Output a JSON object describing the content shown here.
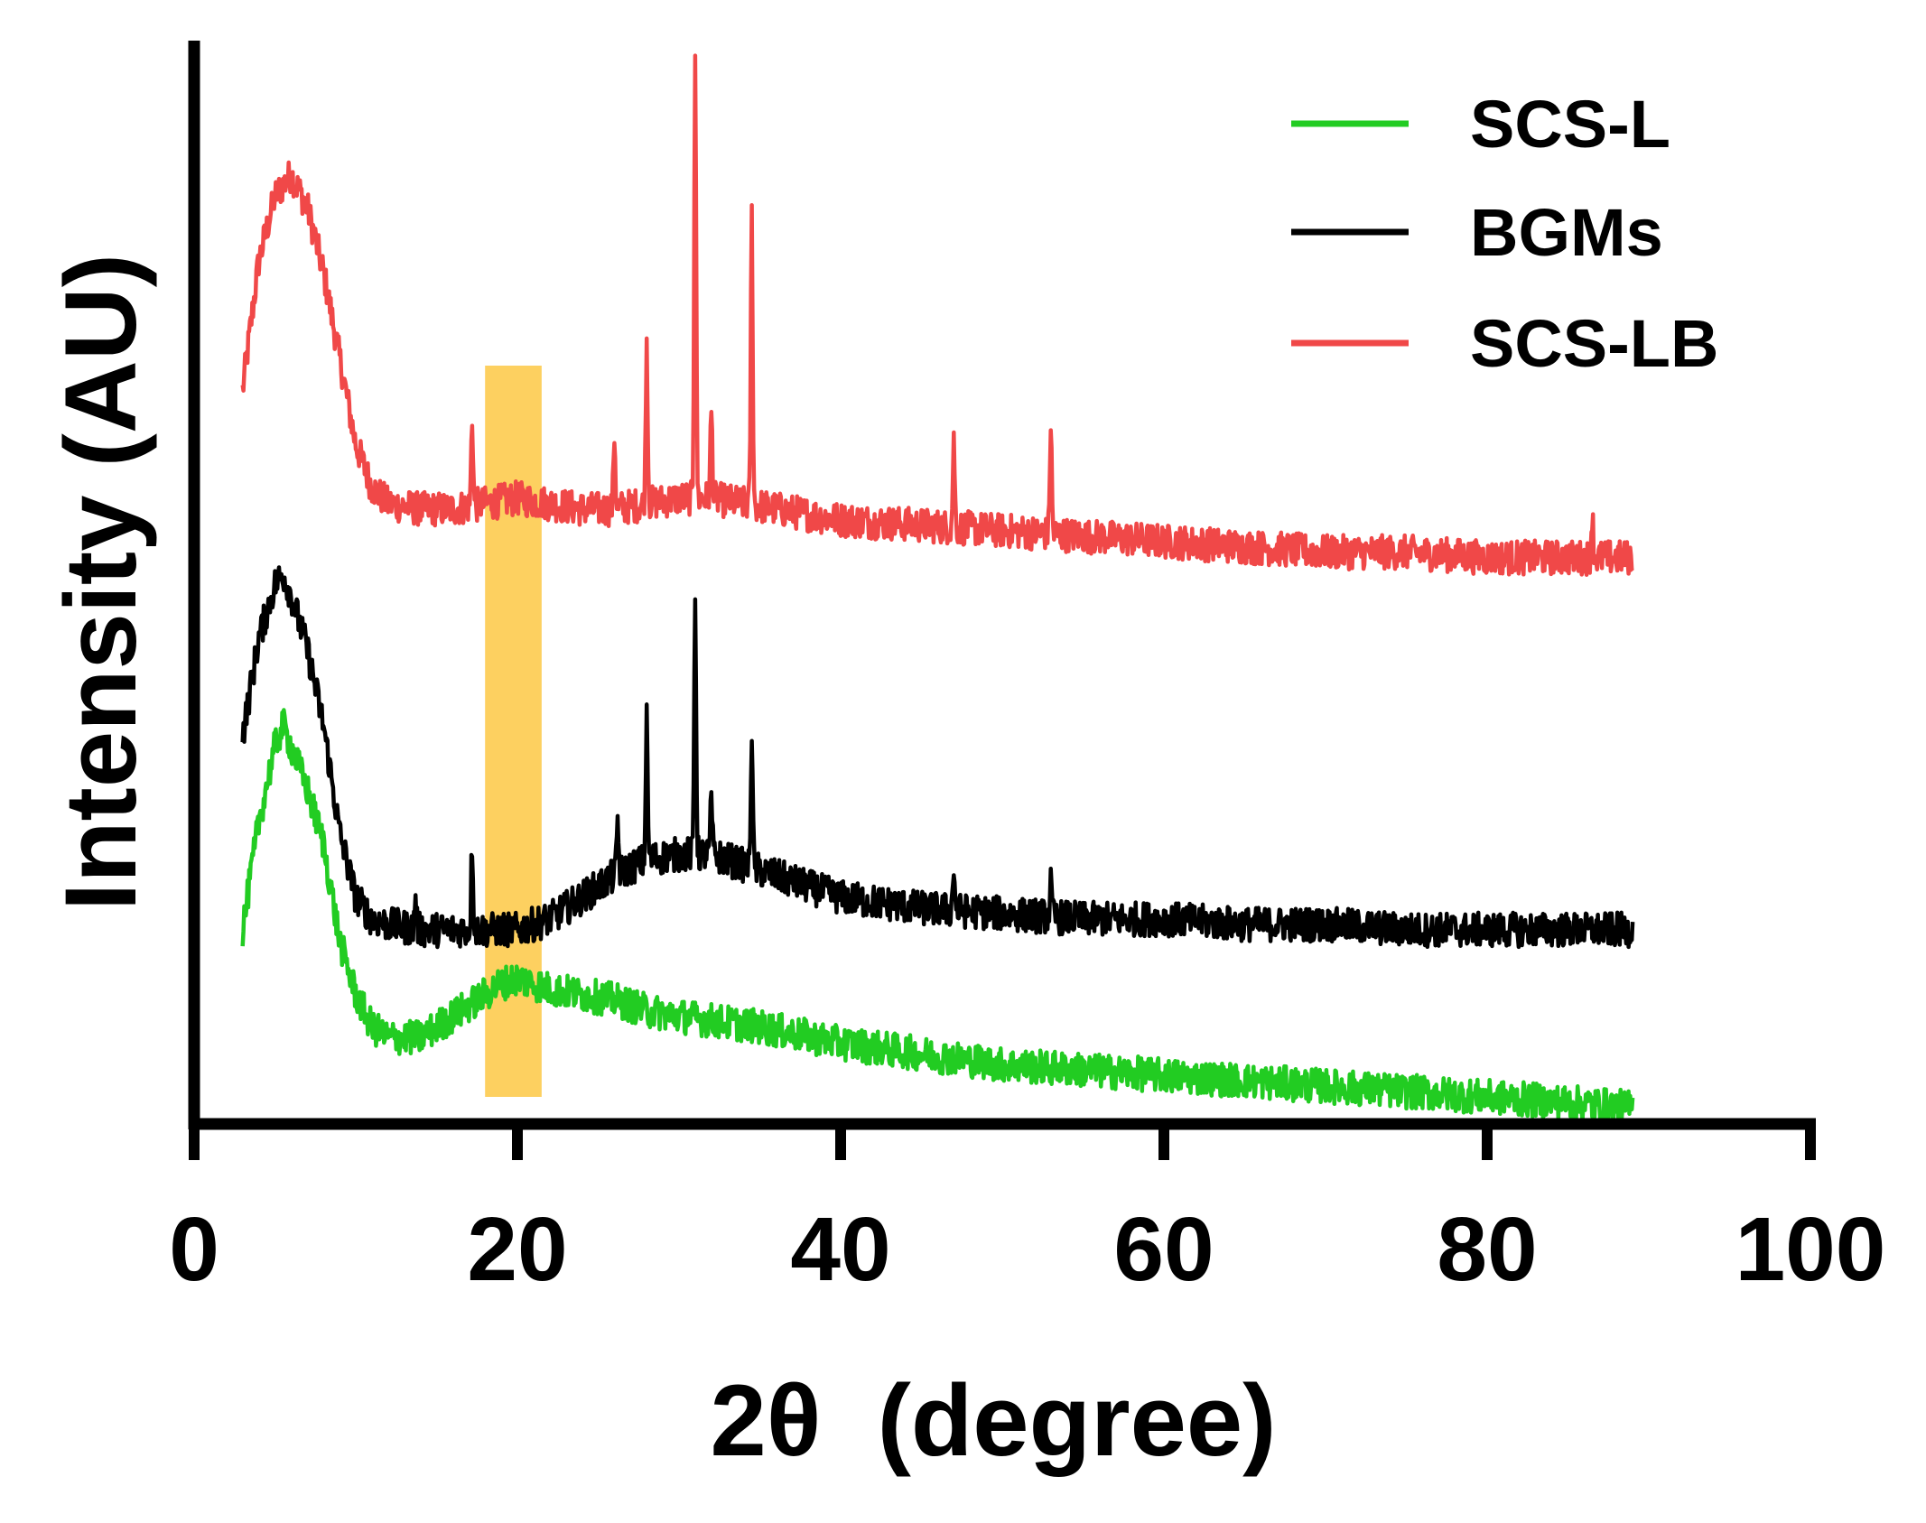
{
  "chart_data": {
    "type": "line",
    "title": "",
    "xlabel": "2θ  (degree)",
    "ylabel": "Intensity (AU)",
    "xlim": [
      0,
      100
    ],
    "ylim": [
      0,
      100
    ],
    "xticks": [
      0,
      20,
      40,
      60,
      80,
      100
    ],
    "xtick_labels": [
      "0",
      "20",
      "40",
      "60",
      "80",
      "100"
    ],
    "y_ticks_shown": false,
    "grid": false,
    "legend_position": "top-right",
    "highlight_band": {
      "x_range": [
        18,
        21.5
      ],
      "color": "#fdd060"
    },
    "series": [
      {
        "name": "SCS-L",
        "color": "#22cc22",
        "x": [
          3,
          4,
          5,
          5.5,
          6,
          7,
          8,
          9,
          10,
          11,
          12,
          13,
          14,
          15,
          16,
          17,
          18,
          19,
          20,
          21,
          22,
          24,
          26,
          28,
          30,
          35,
          40,
          45,
          50,
          55,
          60,
          65,
          70,
          75,
          80,
          85,
          89
        ],
        "values": [
          18,
          28,
          35,
          37,
          35,
          31,
          26,
          17,
          12,
          9,
          8,
          8,
          8,
          9,
          10,
          11,
          12,
          13,
          13.5,
          13,
          12.5,
          12,
          11.5,
          10.5,
          10,
          9,
          7.5,
          6.5,
          5.5,
          5,
          4.5,
          4,
          3.5,
          3,
          2.5,
          2,
          1.5
        ],
        "noise": 1.6
      },
      {
        "name": "BGMs",
        "color": "#000000",
        "x": [
          3,
          4,
          5,
          5.5,
          6,
          7,
          8,
          9,
          10,
          11,
          12,
          14,
          16,
          18,
          20,
          22,
          24,
          26,
          28,
          30,
          32,
          34,
          36,
          38,
          40,
          45,
          50,
          55,
          60,
          65,
          70,
          75,
          80,
          85,
          89
        ],
        "values": [
          36,
          45,
          50,
          51,
          49,
          44,
          37,
          27,
          21,
          19,
          18.5,
          18,
          18,
          18,
          18,
          19,
          21,
          23,
          24.5,
          25,
          25,
          24,
          23,
          22,
          21,
          20,
          19.5,
          19,
          19,
          18.5,
          18.5,
          18,
          18,
          18,
          18
        ],
        "noise": 1.6,
        "peaks": [
          {
            "x": 13.7,
            "height": 3
          },
          {
            "x": 17.2,
            "height": 8
          },
          {
            "x": 26.2,
            "height": 5
          },
          {
            "x": 28.0,
            "height": 13
          },
          {
            "x": 31.0,
            "height": 24
          },
          {
            "x": 32.0,
            "height": 5
          },
          {
            "x": 34.5,
            "height": 13
          },
          {
            "x": 47.0,
            "height": 4
          },
          {
            "x": 53.0,
            "height": 3
          }
        ]
      },
      {
        "name": "SCS-LB",
        "color": "#f04848",
        "x": [
          3,
          4,
          5,
          6,
          7,
          8,
          9,
          10,
          11,
          12,
          14,
          16,
          18,
          20,
          22,
          24,
          26,
          28,
          30,
          32,
          34,
          36,
          38,
          40,
          45,
          50,
          55,
          60,
          65,
          70,
          75,
          80,
          85,
          89
        ],
        "values": [
          68,
          80,
          86,
          88,
          85,
          79,
          71,
          63,
          59,
          57.5,
          57,
          57,
          57.5,
          58,
          57.5,
          57,
          57,
          57.5,
          58,
          58,
          57.5,
          57,
          56.5,
          56,
          55.5,
          55,
          54.5,
          54,
          53.5,
          53,
          53,
          52.5,
          52.5,
          52.5
        ],
        "noise": 1.6,
        "peaks": [
          {
            "x": 17.2,
            "height": 8
          },
          {
            "x": 26.0,
            "height": 7
          },
          {
            "x": 28.0,
            "height": 15
          },
          {
            "x": 31.0,
            "height": 42
          },
          {
            "x": 32.0,
            "height": 8
          },
          {
            "x": 34.5,
            "height": 27
          },
          {
            "x": 47.0,
            "height": 8
          },
          {
            "x": 53.0,
            "height": 10
          },
          {
            "x": 86.5,
            "height": 4
          }
        ]
      }
    ],
    "legend": [
      {
        "label": "SCS-L",
        "color": "#22cc22"
      },
      {
        "label": "BGMs",
        "color": "#000000"
      },
      {
        "label": "SCS-LB",
        "color": "#f04848"
      }
    ]
  }
}
